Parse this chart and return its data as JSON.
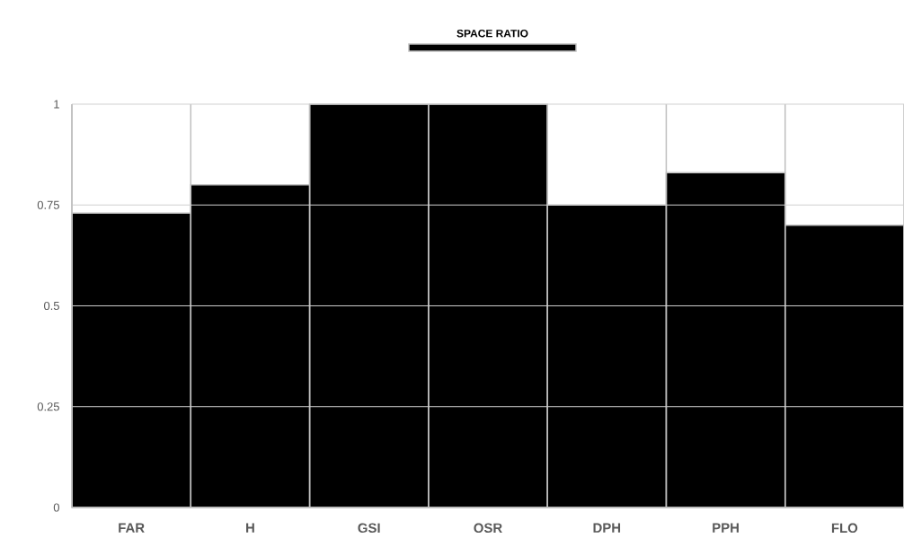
{
  "chart_data": {
    "type": "bar",
    "categories": [
      "FAR",
      "H",
      "GSI",
      "OSR",
      "DPH",
      "PPH",
      "FLO"
    ],
    "series": [
      {
        "name": "SPACE RATIO",
        "color": "#000000",
        "values": [
          0.73,
          0.8,
          1,
          1,
          0.75,
          0.83,
          0.7
        ]
      }
    ],
    "ylim": [
      0,
      1
    ],
    "yticks": [
      0,
      0.25,
      0.5,
      0.75,
      1
    ],
    "grid": true,
    "legend": "top"
  }
}
